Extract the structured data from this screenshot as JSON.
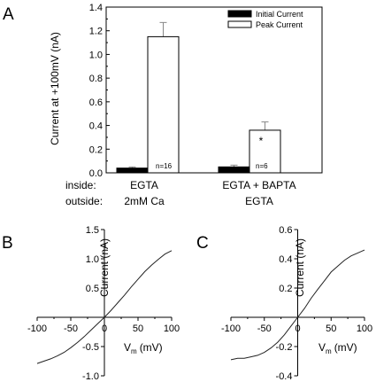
{
  "figure": {
    "panels": [
      "A",
      "B",
      "C"
    ]
  },
  "chart_data": [
    {
      "type": "bar",
      "panel": "A",
      "ylabel": "Current at +100mV (nA)",
      "ylim": [
        0,
        1.4
      ],
      "yticks": [
        "0.0",
        "0.2",
        "0.4",
        "0.6",
        "0.8",
        "1.0",
        "1.2",
        "1.4"
      ],
      "categories": [
        "EGTA",
        "EGTA + BAPTA"
      ],
      "series": [
        {
          "name": "Initial Current",
          "color": "#000000",
          "values": [
            0.04,
            0.05
          ],
          "errors": [
            0.01,
            0.015
          ]
        },
        {
          "name": "Peak Current",
          "color": "#ffffff",
          "values": [
            1.15,
            0.36
          ],
          "errors": [
            0.12,
            0.07
          ]
        }
      ],
      "n_labels": [
        "n=16",
        "n=6"
      ],
      "significance": [
        "",
        "*"
      ],
      "legend_position": "top-right",
      "conditions": {
        "rows": [
          {
            "label": "inside:",
            "values": [
              "EGTA",
              "EGTA + BAPTA"
            ]
          },
          {
            "label": "outside:",
            "values": [
              "2mM Ca",
              "EGTA"
            ]
          }
        ]
      }
    },
    {
      "type": "line",
      "panel": "B",
      "xlabel": "V",
      "xlabel_sub": "m",
      "xlabel_unit": "(mV)",
      "ylabel": "Current (nA)",
      "xlim": [
        -100,
        100
      ],
      "ylim": [
        -1.0,
        1.5
      ],
      "xticks": [
        "-100",
        "-50",
        "0",
        "50",
        "100"
      ],
      "yticks": [
        "1.5",
        "1.0",
        "0.5",
        "-0.5",
        "-1.0"
      ],
      "series": [
        {
          "x": [
            -100,
            -90,
            -80,
            -70,
            -60,
            -50,
            -40,
            -30,
            -20,
            -10,
            0,
            10,
            20,
            30,
            40,
            50,
            60,
            70,
            80,
            90,
            100
          ],
          "y": [
            -0.79,
            -0.75,
            -0.71,
            -0.66,
            -0.6,
            -0.52,
            -0.43,
            -0.33,
            -0.22,
            -0.11,
            0.0,
            0.12,
            0.25,
            0.38,
            0.52,
            0.65,
            0.78,
            0.89,
            0.99,
            1.08,
            1.14
          ]
        }
      ]
    },
    {
      "type": "line",
      "panel": "C",
      "xlabel": "V",
      "xlabel_sub": "m",
      "xlabel_unit": "(mV)",
      "ylabel": "Current (nA)",
      "xlim": [
        -100,
        100
      ],
      "ylim": [
        -0.4,
        0.6
      ],
      "xticks": [
        "-100",
        "-50",
        "0",
        "50",
        "100"
      ],
      "yticks": [
        "0.6",
        "0.4",
        "0.2",
        "-0.2",
        "-0.4"
      ],
      "series": [
        {
          "x": [
            -100,
            -90,
            -80,
            -70,
            -60,
            -50,
            -40,
            -30,
            -20,
            -10,
            0,
            10,
            20,
            30,
            40,
            50,
            60,
            70,
            80,
            90,
            100
          ],
          "y": [
            -0.29,
            -0.28,
            -0.28,
            -0.27,
            -0.26,
            -0.24,
            -0.21,
            -0.17,
            -0.12,
            -0.06,
            0.0,
            0.06,
            0.13,
            0.19,
            0.25,
            0.31,
            0.35,
            0.39,
            0.42,
            0.44,
            0.46
          ]
        }
      ]
    }
  ]
}
